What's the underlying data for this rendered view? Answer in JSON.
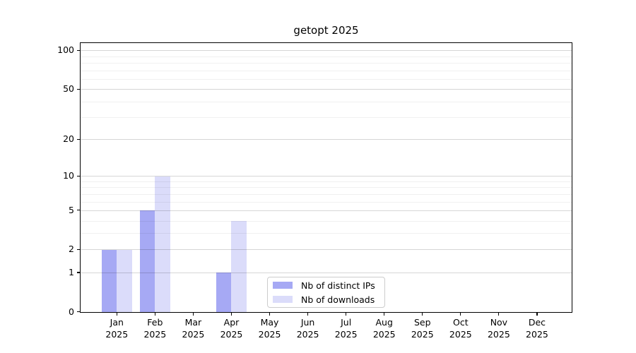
{
  "title": "getopt 2025",
  "chart_data": {
    "type": "bar",
    "title": "getopt 2025",
    "categories": [
      "Jan",
      "Feb",
      "Mar",
      "Apr",
      "May",
      "Jun",
      "Jul",
      "Aug",
      "Sep",
      "Oct",
      "Nov",
      "Dec"
    ],
    "year_suffix": "2025",
    "series": [
      {
        "name": "Nb of distinct IPs",
        "color": "#a6a9f4",
        "values": [
          2,
          5,
          0,
          1,
          0,
          0,
          0,
          0,
          0,
          0,
          0,
          0
        ]
      },
      {
        "name": "Nb of downloads",
        "color": "#dbdcfa",
        "values": [
          2,
          10,
          0,
          4,
          0,
          0,
          0,
          0,
          0,
          0,
          0,
          0
        ]
      }
    ],
    "xlabel": "",
    "ylabel": "",
    "yscale": "log1p",
    "ylim": [
      0,
      114
    ],
    "yticks": [
      0,
      1,
      2,
      5,
      10,
      20,
      50,
      100
    ],
    "y_minor_ticks": [
      3,
      4,
      6,
      7,
      8,
      9,
      30,
      40,
      60,
      70,
      80,
      90
    ],
    "grid": "horizontal",
    "grid_major_color": "rgba(0,0,0,0.16)",
    "grid_minor_color": "rgba(0,0,0,0.06)",
    "axis_color": "#000000",
    "background_color": "#ffffff",
    "legend_position": "inside-bottom-center"
  }
}
